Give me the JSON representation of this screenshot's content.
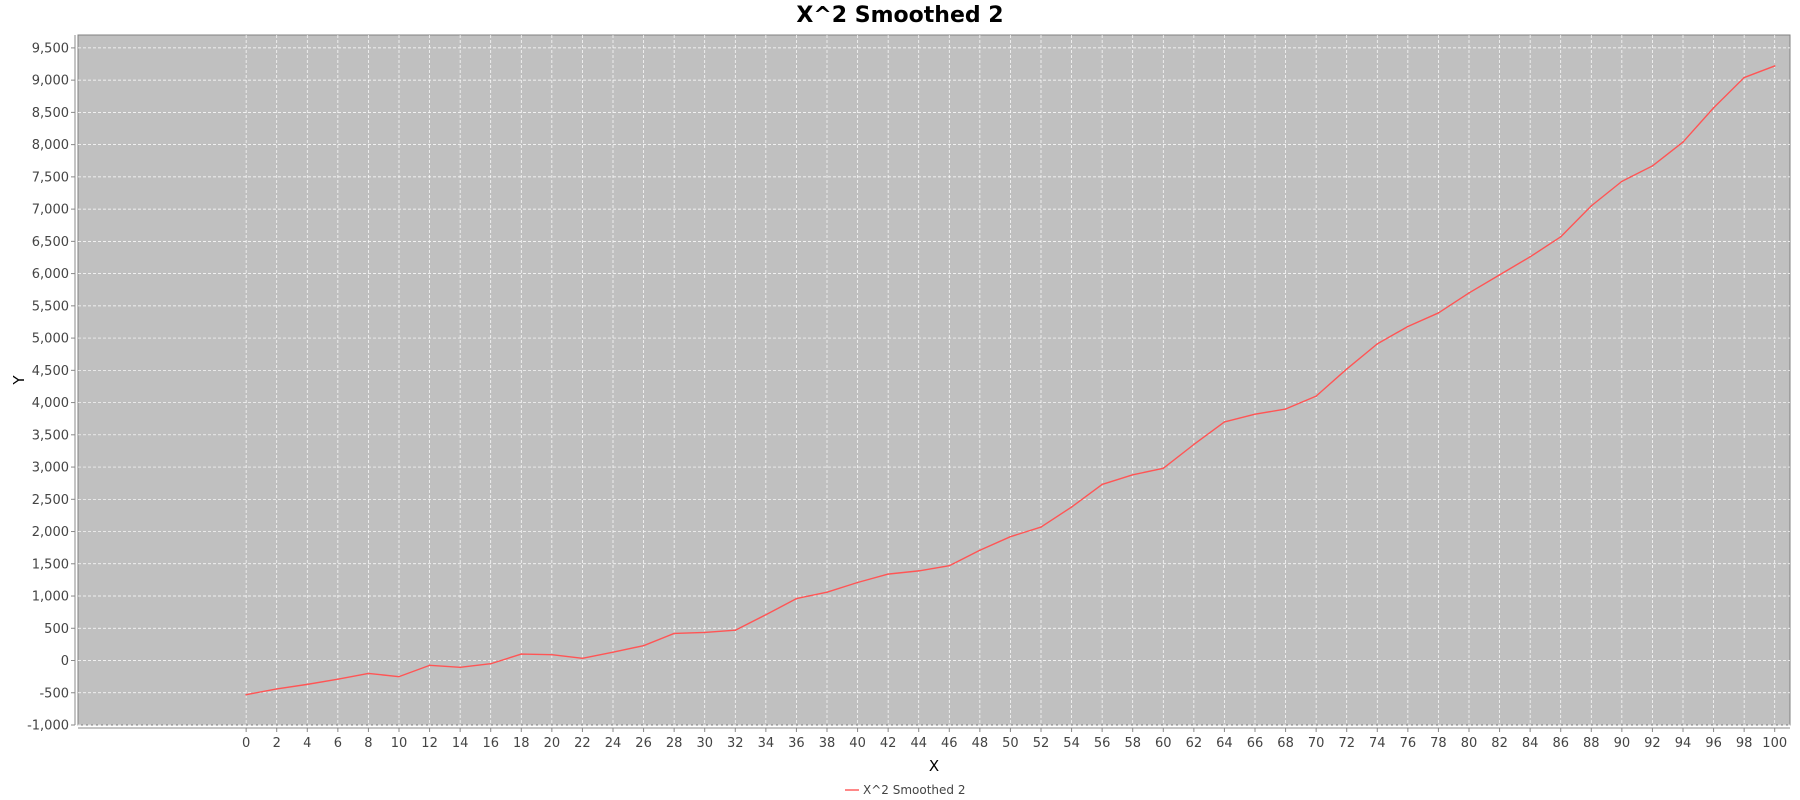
{
  "chart_data": {
    "type": "line",
    "title": "X^2 Smoothed 2",
    "xlabel": "X",
    "ylabel": "Y",
    "xlim": [
      -11,
      101
    ],
    "ylim": [
      -1000,
      9700
    ],
    "xticks": [
      0,
      2,
      4,
      6,
      8,
      10,
      12,
      14,
      16,
      18,
      20,
      22,
      24,
      26,
      28,
      30,
      32,
      34,
      36,
      38,
      40,
      42,
      44,
      46,
      48,
      50,
      52,
      54,
      56,
      58,
      60,
      62,
      64,
      66,
      68,
      70,
      72,
      74,
      76,
      78,
      80,
      82,
      84,
      86,
      88,
      90,
      92,
      94,
      96,
      98,
      100
    ],
    "yticks": [
      -1000,
      -500,
      0,
      500,
      1000,
      1500,
      2000,
      2500,
      3000,
      3500,
      4000,
      4500,
      5000,
      5500,
      6000,
      6500,
      7000,
      7500,
      8000,
      8500,
      9000,
      9500
    ],
    "grid": true,
    "legend_position": "bottom",
    "colors": {
      "plot_background": "#c0c0c0",
      "series": "#ff5555",
      "grid": "#ffffff"
    },
    "series": [
      {
        "name": "X^2 Smoothed 2",
        "x": [
          0,
          2,
          4,
          6,
          8,
          10,
          12,
          14,
          16,
          18,
          20,
          22,
          24,
          26,
          28,
          30,
          32,
          34,
          36,
          38,
          40,
          42,
          44,
          46,
          48,
          50,
          52,
          54,
          56,
          58,
          60,
          62,
          64,
          66,
          68,
          70,
          72,
          74,
          76,
          78,
          80,
          82,
          84,
          86,
          88,
          90,
          92,
          94,
          96,
          98,
          100
        ],
        "y": [
          -530,
          -440,
          -370,
          -290,
          -200,
          -250,
          -75,
          -105,
          -50,
          100,
          90,
          35,
          130,
          230,
          420,
          435,
          470,
          710,
          960,
          1060,
          1210,
          1340,
          1390,
          1470,
          1710,
          1920,
          2070,
          2380,
          2730,
          2880,
          2980,
          3350,
          3700,
          3820,
          3900,
          4100,
          4520,
          4910,
          5180,
          5390,
          5700,
          5980,
          6260,
          6570,
          7050,
          7430,
          7670,
          8040,
          8570,
          9040,
          9220
        ]
      }
    ]
  }
}
